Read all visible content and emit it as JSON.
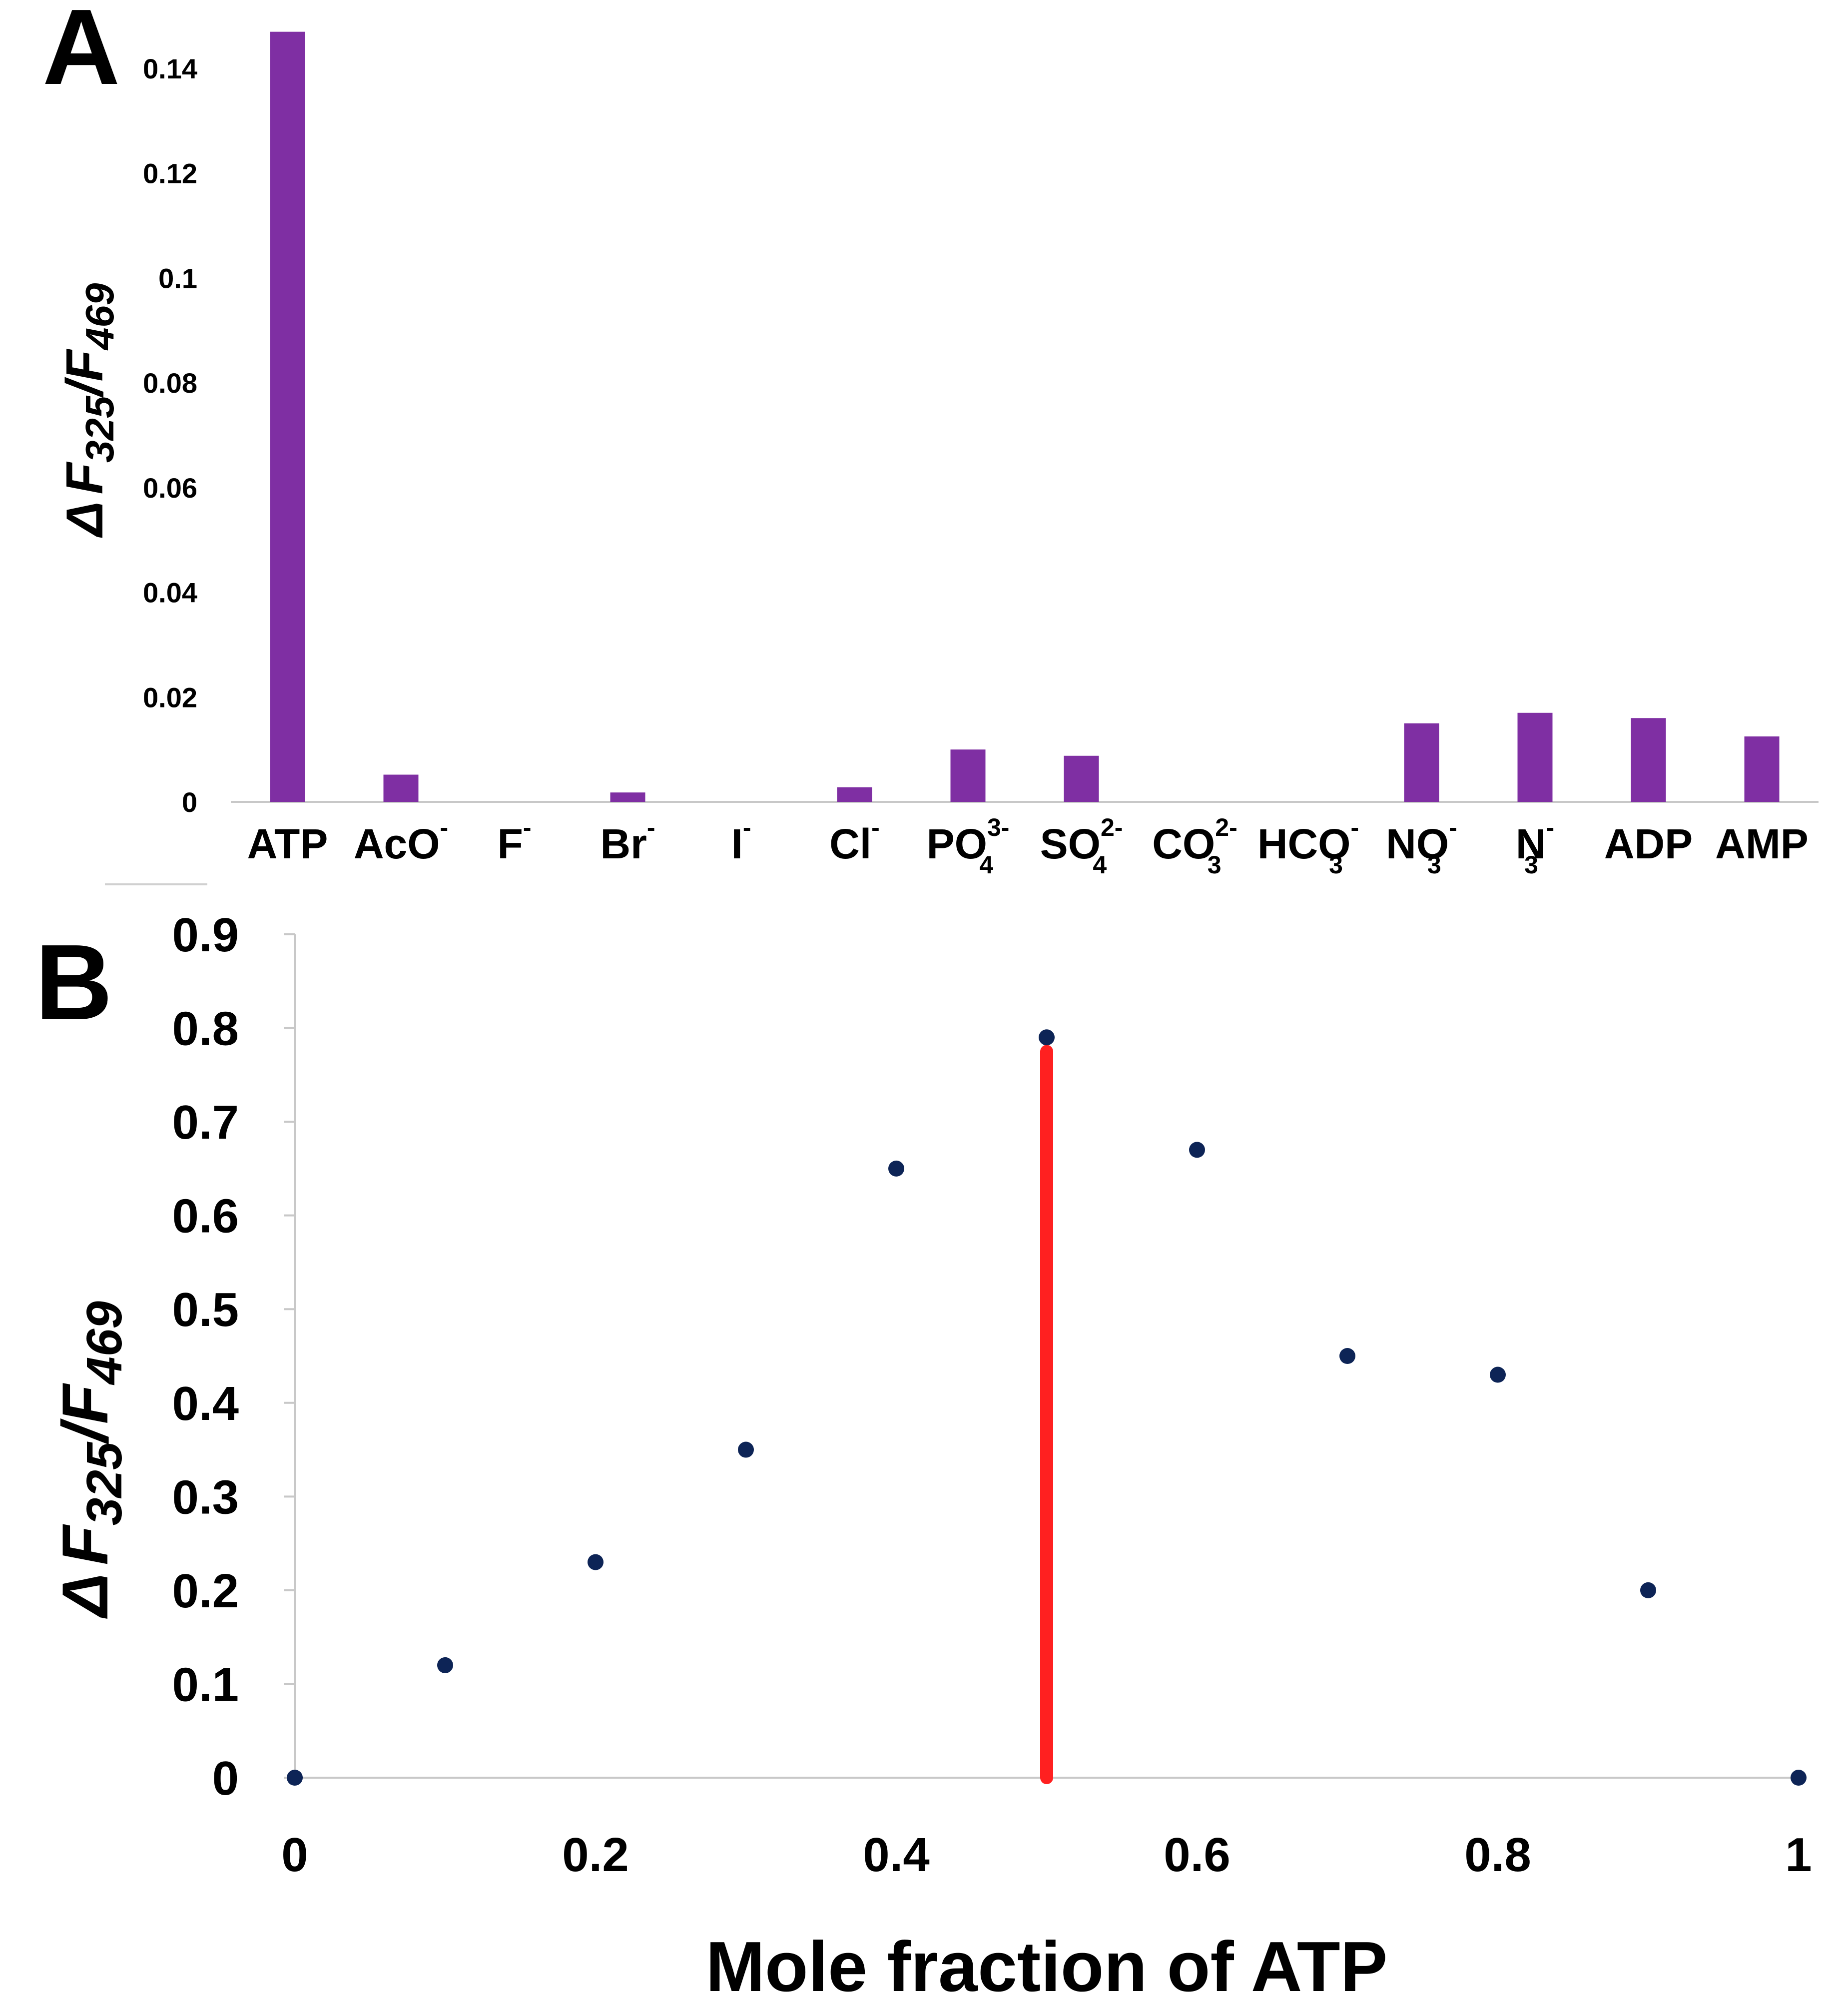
{
  "colors": {
    "bar": "#7F2FA3",
    "point": "#0D2456",
    "red_line": "#FF2020",
    "axis": "#C8C8C8"
  },
  "panel_a": {
    "letter": "A",
    "ylabel": {
      "prefix": "Δ",
      "f1": "F",
      "sub1": "325",
      "slash": "/",
      "f2": "F",
      "sub2": "469"
    },
    "chart_data": {
      "type": "bar",
      "categories": [
        {
          "base": "ATP",
          "sub": "",
          "sup": ""
        },
        {
          "base": "AcO",
          "sub": "",
          "sup": "-"
        },
        {
          "base": "F",
          "sub": "",
          "sup": "-"
        },
        {
          "base": "Br",
          "sub": "",
          "sup": "-"
        },
        {
          "base": "I",
          "sub": "",
          "sup": "-"
        },
        {
          "base": "Cl",
          "sub": "",
          "sup": "-"
        },
        {
          "base": "PO",
          "sub": "4",
          "sup": "3-"
        },
        {
          "base": "SO",
          "sub": "4",
          "sup": "2-"
        },
        {
          "base": "CO",
          "sub": "3",
          "sup": "2-"
        },
        {
          "base": "HCO",
          "sub": "3",
          "sup": "-"
        },
        {
          "base": "NO",
          "sub": "3",
          "sup": "-"
        },
        {
          "base": "N",
          "sub": "3",
          "sup": "-"
        },
        {
          "base": "ADP",
          "sub": "",
          "sup": ""
        },
        {
          "base": "AMP",
          "sub": "",
          "sup": ""
        }
      ],
      "values": [
        0.147,
        0.0052,
        0.0,
        0.0018,
        0.0,
        0.0028,
        0.01,
        0.0088,
        0.0,
        0.0,
        0.015,
        0.017,
        0.016,
        0.0125
      ],
      "ylim": [
        0,
        0.14
      ],
      "yticks": [
        "0",
        "0.02",
        "0.04",
        "0.06",
        "0.08",
        "0.1",
        "0.12",
        "0.14"
      ],
      "grid": false
    }
  },
  "panel_b": {
    "letter": "B",
    "ylabel": {
      "prefix": "Δ",
      "f1": "F",
      "sub1": "325",
      "slash": "/",
      "f2": "F",
      "sub2": "469"
    },
    "chart_data": {
      "type": "scatter",
      "xlabel": "Mole fraction of ATP",
      "x": [
        0,
        0.1,
        0.2,
        0.3,
        0.4,
        0.5,
        0.6,
        0.7,
        0.8,
        0.9,
        1.0
      ],
      "y": [
        0,
        0.12,
        0.23,
        0.35,
        0.65,
        0.79,
        0.67,
        0.45,
        0.43,
        0.2,
        0
      ],
      "xlim": [
        0,
        1
      ],
      "ylim": [
        0,
        0.9
      ],
      "xticks": [
        "0",
        "0.2",
        "0.4",
        "0.6",
        "0.8",
        "1"
      ],
      "yticks": [
        "0",
        "0.1",
        "0.2",
        "0.3",
        "0.4",
        "0.5",
        "0.6",
        "0.7",
        "0.8",
        "0.9"
      ],
      "vertical_line": {
        "x": 0.5,
        "y_from": 0,
        "y_to": 0.775
      },
      "grid": false
    }
  }
}
